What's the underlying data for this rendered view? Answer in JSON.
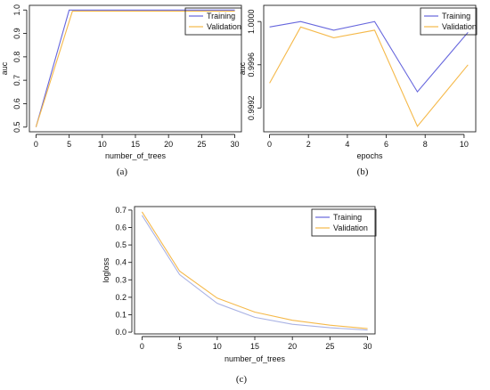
{
  "chart_data": [
    {
      "type": "line",
      "panel": "(a)",
      "xlabel": "number_of_trees",
      "ylabel": "auc",
      "xlim": [
        -1,
        31
      ],
      "ylim": [
        0.48,
        1.02
      ],
      "xticks": [
        0,
        5,
        10,
        15,
        20,
        25,
        30
      ],
      "yticks": [
        0.5,
        0.6,
        0.7,
        0.8,
        0.9,
        1.0
      ],
      "ytick_labels": [
        "0.5",
        "0.6",
        "0.7",
        "0.8",
        "0.9",
        "1.0"
      ],
      "ytick_rotation": -90,
      "legend": "top-right",
      "grid": false,
      "series": [
        {
          "name": "Training",
          "color": "#6666dd",
          "x": [
            0,
            5,
            10,
            15,
            20,
            25,
            30
          ],
          "y": [
            0.5,
            1.0,
            1.0,
            1.0,
            1.0,
            1.0,
            1.0
          ]
        },
        {
          "name": "Validation",
          "color": "#f5b94a",
          "x": [
            0,
            5.5,
            10,
            15,
            20,
            25,
            30
          ],
          "y": [
            0.5,
            0.995,
            0.995,
            0.995,
            0.995,
            0.995,
            0.995
          ]
        }
      ]
    },
    {
      "type": "line",
      "panel": "(b)",
      "xlabel": "epochs",
      "ylabel": "auc",
      "xlim": [
        -0.3,
        10.6
      ],
      "ylim": [
        0.99898,
        1.00015
      ],
      "xticks": [
        0,
        2,
        4,
        6,
        8,
        10
      ],
      "yticks": [
        0.9992,
        0.9996,
        1.0
      ],
      "ytick_labels": [
        "0.9992",
        "0.9996",
        "1.0000"
      ],
      "ytick_rotation": -90,
      "legend": "top-right",
      "grid": false,
      "series": [
        {
          "name": "Training",
          "color": "#6666dd",
          "x": [
            0.0,
            1.6,
            3.3,
            5.4,
            7.6,
            10.2
          ],
          "y": [
            0.99995,
            1.0,
            0.99992,
            1.0,
            0.99935,
            0.9999
          ]
        },
        {
          "name": "Validation",
          "color": "#f5b94a",
          "x": [
            0.0,
            1.6,
            3.3,
            5.4,
            7.6,
            10.2
          ],
          "y": [
            0.99943,
            0.99995,
            0.99985,
            0.99992,
            0.99903,
            0.9996
          ]
        }
      ]
    },
    {
      "type": "line",
      "panel": "(c)",
      "xlabel": "number_of_trees",
      "ylabel": "logloss",
      "xlim": [
        -1,
        31
      ],
      "ylim": [
        -0.01,
        0.72
      ],
      "xticks": [
        0,
        5,
        10,
        15,
        20,
        25,
        30
      ],
      "yticks": [
        0.0,
        0.1,
        0.2,
        0.3,
        0.4,
        0.5,
        0.6,
        0.7
      ],
      "ytick_labels": [
        "0.0",
        "0.1",
        "0.2",
        "0.3",
        "0.4",
        "0.5",
        "0.6",
        "0.7"
      ],
      "ytick_rotation": 0,
      "legend": "top-right",
      "grid": false,
      "series": [
        {
          "name": "Training",
          "color": "#a9b2e4",
          "x": [
            0,
            5,
            10,
            15,
            20,
            25,
            30
          ],
          "y": [
            0.67,
            0.33,
            0.165,
            0.085,
            0.045,
            0.025,
            0.012
          ]
        },
        {
          "name": "Validation",
          "color": "#f5b94a",
          "x": [
            0,
            5,
            10,
            15,
            20,
            25,
            30
          ],
          "y": [
            0.69,
            0.35,
            0.195,
            0.115,
            0.068,
            0.04,
            0.02
          ]
        }
      ]
    }
  ],
  "legend_colors": {
    "Training": "#6666dd",
    "Validation": "#f5b94a"
  }
}
